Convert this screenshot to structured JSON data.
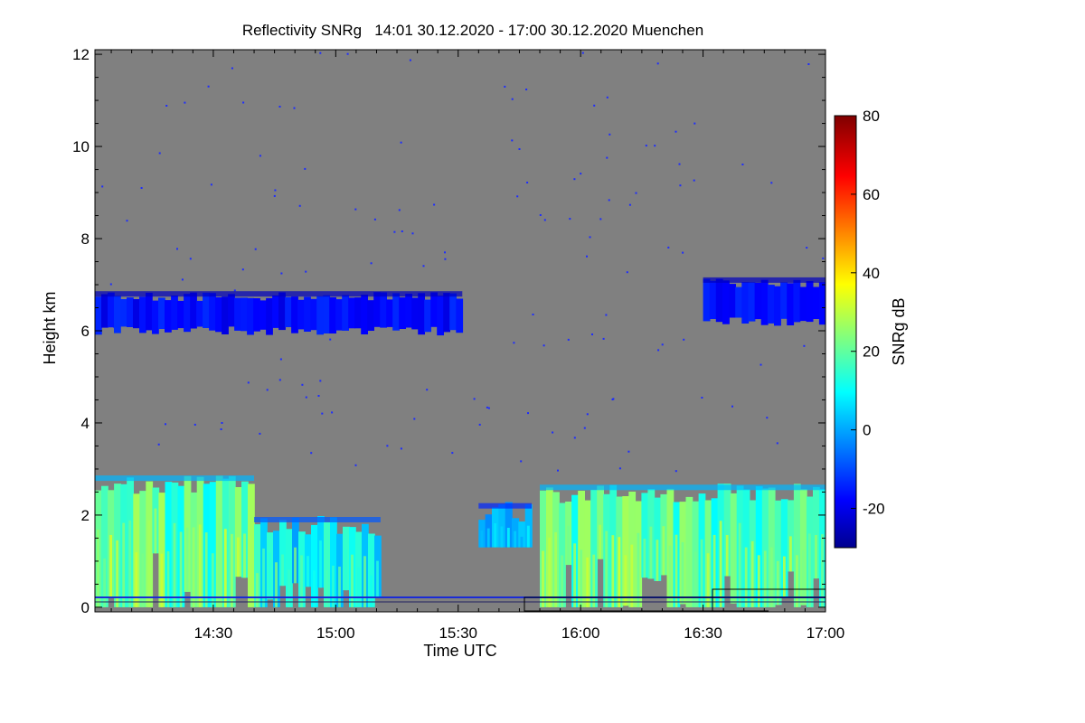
{
  "chart_data": {
    "type": "heatmap",
    "title": "Reflectivity SNRg   14:01 30.12.2020 - 17:00 30.12.2020 Muenchen",
    "xlabel": "Time UTC",
    "ylabel": "Height km",
    "x_range_minutes_utc": [
      841,
      1020
    ],
    "y_range_km": [
      -0.1,
      12.1
    ],
    "x_ticks": [
      {
        "label": "14:30",
        "minutes": 870
      },
      {
        "label": "15:00",
        "minutes": 900
      },
      {
        "label": "15:30",
        "minutes": 930
      },
      {
        "label": "16:00",
        "minutes": 960
      },
      {
        "label": "16:30",
        "minutes": 990
      },
      {
        "label": "17:00",
        "minutes": 1020
      }
    ],
    "y_ticks": [
      {
        "label": "0",
        "value": 0
      },
      {
        "label": "2",
        "value": 2
      },
      {
        "label": "4",
        "value": 4
      },
      {
        "label": "6",
        "value": 6
      },
      {
        "label": "8",
        "value": 8
      },
      {
        "label": "10",
        "value": 10
      },
      {
        "label": "12",
        "value": 12
      }
    ],
    "background_color": "#808080",
    "colorbar": {
      "label": "SNRg dB",
      "range": [
        -30,
        80
      ],
      "ticks": [
        {
          "label": "-20",
          "value": -20
        },
        {
          "label": "0",
          "value": 0
        },
        {
          "label": "20",
          "value": 20
        },
        {
          "label": "40",
          "value": 40
        },
        {
          "label": "60",
          "value": 60
        },
        {
          "label": "80",
          "value": 80
        }
      ],
      "colormap": "jet"
    },
    "regions": [
      {
        "layer": "low cloud/precipitation",
        "x_start": 841,
        "x_end": 880,
        "top_km": 2.8,
        "bottom_km": 0.0,
        "snr_db": [
          0,
          35
        ]
      },
      {
        "layer": "low cloud/precipitation",
        "x_start": 880,
        "x_end": 911,
        "top_km": 1.9,
        "bottom_km": 0.0,
        "snr_db": [
          -10,
          25
        ]
      },
      {
        "layer": "low cloud",
        "x_start": 935,
        "x_end": 948,
        "top_km": 2.2,
        "bottom_km": 1.3,
        "snr_db": [
          -15,
          10
        ]
      },
      {
        "layer": "low cloud/precipitation",
        "x_start": 950,
        "x_end": 1020,
        "top_km": 2.6,
        "bottom_km": 0.0,
        "snr_db": [
          0,
          35
        ]
      },
      {
        "layer": "mid-level cloud",
        "x_start": 841,
        "x_end": 931,
        "top_km": 6.8,
        "bottom_km": 5.9,
        "snr_db": [
          -25,
          -10
        ]
      },
      {
        "layer": "mid-level cloud",
        "x_start": 990,
        "x_end": 1020,
        "top_km": 7.1,
        "bottom_km": 6.1,
        "snr_db": [
          -25,
          -10
        ]
      }
    ]
  }
}
